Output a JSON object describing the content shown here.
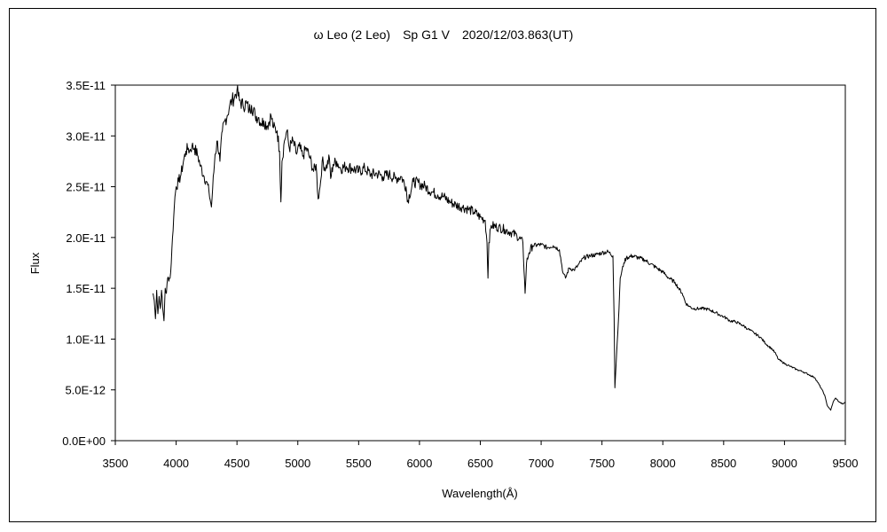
{
  "chart_data": {
    "type": "line",
    "title": "ω Leo (2 Leo)　Sp G1 V　2020/12/03.863(UT)",
    "xlabel": "Wavelength(Å)",
    "ylabel": "Flux",
    "xlim": [
      3500,
      9500
    ],
    "ylim": [
      0,
      3.5e-11
    ],
    "x_ticks": [
      3500,
      4000,
      4500,
      5000,
      5500,
      6000,
      6500,
      7000,
      7500,
      8000,
      8500,
      9000,
      9500
    ],
    "x_tick_labels": [
      "3500",
      "4000",
      "4500",
      "5000",
      "5500",
      "6000",
      "6500",
      "7000",
      "7500",
      "8000",
      "8500",
      "9000",
      "9500"
    ],
    "y_ticks": [
      0,
      5e-12,
      1e-11,
      1.5e-11,
      2e-11,
      2.5e-11,
      3e-11,
      3.5e-11
    ],
    "y_tick_labels": [
      "0.0E+00",
      "5.0E-12",
      "1.0E-11",
      "1.5E-11",
      "2.0E-11",
      "2.5E-11",
      "3.0E-11",
      "3.5E-11"
    ],
    "grid": false,
    "legend": "none",
    "series": [
      {
        "color": "#000000",
        "x": [
          3810,
          3820,
          3830,
          3840,
          3850,
          3860,
          3870,
          3880,
          3890,
          3900,
          3910,
          3920,
          3930,
          3950,
          3960,
          3970,
          3980,
          3990,
          4000,
          4020,
          4040,
          4060,
          4080,
          4100,
          4110,
          4130,
          4150,
          4180,
          4200,
          4230,
          4250,
          4270,
          4290,
          4300,
          4320,
          4340,
          4360,
          4380,
          4400,
          4420,
          4440,
          4460,
          4480,
          4500,
          4520,
          4550,
          4580,
          4600,
          4620,
          4650,
          4680,
          4700,
          4720,
          4750,
          4780,
          4800,
          4830,
          4850,
          4861,
          4870,
          4890,
          4910,
          4930,
          4960,
          4990,
          5010,
          5040,
          5070,
          5100,
          5130,
          5150,
          5167,
          5183,
          5200,
          5230,
          5260,
          5270,
          5290,
          5320,
          5350,
          5400,
          5450,
          5500,
          5550,
          5600,
          5650,
          5700,
          5750,
          5800,
          5850,
          5890,
          5900,
          5950,
          6000,
          6050,
          6100,
          6150,
          6200,
          6250,
          6300,
          6350,
          6400,
          6450,
          6500,
          6540,
          6555,
          6563,
          6570,
          6590,
          6650,
          6700,
          6750,
          6800,
          6850,
          6868,
          6880,
          6900,
          6930,
          7000,
          7050,
          7100,
          7150,
          7180,
          7200,
          7230,
          7270,
          7300,
          7350,
          7400,
          7450,
          7500,
          7550,
          7590,
          7600,
          7606,
          7620,
          7640,
          7650,
          7680,
          7700,
          7750,
          7800,
          7850,
          7900,
          7950,
          8000,
          8050,
          8100,
          8130,
          8160,
          8190,
          8220,
          8250,
          8300,
          8350,
          8400,
          8450,
          8500,
          8530,
          8550,
          8600,
          8650,
          8700,
          8750,
          8800,
          8850,
          8900,
          8930,
          8950,
          9000,
          9050,
          9100,
          9150,
          9200,
          9250,
          9300,
          9330,
          9350,
          9380,
          9400,
          9420,
          9450,
          9480,
          9500
        ],
        "y": [
          1.45e-11,
          1.38e-11,
          1.2e-11,
          1.48e-11,
          1.25e-11,
          1.42e-11,
          1.3e-11,
          1.48e-11,
          1.3e-11,
          1.18e-11,
          1.5e-11,
          1.45e-11,
          1.6e-11,
          1.6e-11,
          1.75e-11,
          2e-11,
          2.2e-11,
          2.4e-11,
          2.5e-11,
          2.55e-11,
          2.62e-11,
          2.75e-11,
          2.85e-11,
          2.88e-11,
          2.85e-11,
          2.9e-11,
          2.88e-11,
          2.8e-11,
          2.7e-11,
          2.6e-11,
          2.55e-11,
          2.45e-11,
          2.3e-11,
          2.48e-11,
          2.82e-11,
          2.95e-11,
          2.75e-11,
          3.05e-11,
          3.15e-11,
          3.2e-11,
          3.3e-11,
          3.35e-11,
          3.38e-11,
          3.45e-11,
          3.35e-11,
          3.3e-11,
          3.32e-11,
          3.25e-11,
          3.3e-11,
          3.2e-11,
          3.18e-11,
          3.12e-11,
          3.15e-11,
          3.1e-11,
          3.2e-11,
          3.08e-11,
          3.05e-11,
          2.85e-11,
          2.35e-11,
          2.75e-11,
          2.95e-11,
          3.05e-11,
          2.88e-11,
          2.95e-11,
          2.82e-11,
          2.9e-11,
          2.8e-11,
          2.88e-11,
          2.78e-11,
          2.65e-11,
          2.72e-11,
          2.38e-11,
          2.5e-11,
          2.75e-11,
          2.68e-11,
          2.78e-11,
          2.58e-11,
          2.72e-11,
          2.75e-11,
          2.68e-11,
          2.7e-11,
          2.68e-11,
          2.65e-11,
          2.68e-11,
          2.62e-11,
          2.63e-11,
          2.6e-11,
          2.62e-11,
          2.58e-11,
          2.6e-11,
          2.5e-11,
          2.35e-11,
          2.55e-11,
          2.53e-11,
          2.5e-11,
          2.45e-11,
          2.42e-11,
          2.4e-11,
          2.35e-11,
          2.32e-11,
          2.3e-11,
          2.28e-11,
          2.25e-11,
          2.2e-11,
          2.17e-11,
          1.95e-11,
          1.6e-11,
          1.95e-11,
          2.12e-11,
          2.1e-11,
          2.08e-11,
          2.05e-11,
          2.02e-11,
          1.95e-11,
          1.45e-11,
          1.75e-11,
          1.85e-11,
          1.92e-11,
          1.93e-11,
          1.9e-11,
          1.92e-11,
          1.88e-11,
          1.65e-11,
          1.6e-11,
          1.7e-11,
          1.68e-11,
          1.72e-11,
          1.8e-11,
          1.82e-11,
          1.83e-11,
          1.85e-11,
          1.86e-11,
          1.82e-11,
          1.2e-11,
          5.2e-12,
          8.5e-12,
          1.3e-11,
          1.6e-11,
          1.75e-11,
          1.8e-11,
          1.82e-11,
          1.8e-11,
          1.78e-11,
          1.74e-11,
          1.7e-11,
          1.66e-11,
          1.6e-11,
          1.56e-11,
          1.5e-11,
          1.45e-11,
          1.35e-11,
          1.32e-11,
          1.3e-11,
          1.3e-11,
          1.3e-11,
          1.28e-11,
          1.25e-11,
          1.22e-11,
          1.2e-11,
          1.18e-11,
          1.17e-11,
          1.14e-11,
          1.1e-11,
          1.06e-11,
          1.02e-11,
          9.5e-12,
          9e-12,
          8.5e-12,
          8e-12,
          7.6e-12,
          7.3e-12,
          7e-12,
          6.8e-12,
          6.5e-12,
          6.2e-12,
          5.2e-12,
          4.5e-12,
          3.5e-12,
          3e-12,
          3.8e-12,
          4.2e-12,
          3.8e-12,
          3.6e-12,
          3.8e-12
        ]
      }
    ]
  }
}
